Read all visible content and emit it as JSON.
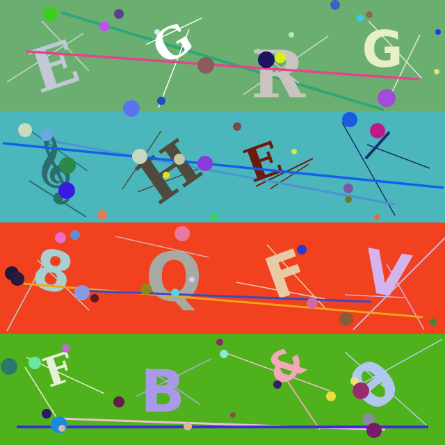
{
  "bands": [
    {
      "name": "band-1",
      "color": "#6aaf6f",
      "letters": [
        {
          "char": "E",
          "color": "#c3c8d6"
        },
        {
          "char": "G",
          "color": "#ffffff"
        },
        {
          "char": "R",
          "color": "#c9c4c0"
        },
        {
          "char": "G",
          "color": "#e6f0c8"
        }
      ]
    },
    {
      "name": "band-2",
      "color": "#4bb7bd",
      "letters": [
        {
          "char": "𝄞",
          "color": "#2a6e6c"
        },
        {
          "char": "H",
          "color": "#4e4a3e"
        },
        {
          "char": "E",
          "color": "#6b1a0c"
        }
      ]
    },
    {
      "name": "band-3",
      "color": "#f1411e",
      "letters": [
        {
          "char": "8",
          "color": "#a9cfd1"
        },
        {
          "char": "Q",
          "color": "#a6aaa3"
        },
        {
          "char": "F",
          "color": "#e8cba4"
        },
        {
          "char": "V",
          "color": "#d4b4ec"
        }
      ]
    },
    {
      "name": "band-4",
      "color": "#4fb11b",
      "letters": [
        {
          "char": "F",
          "color": "#e6f0da"
        },
        {
          "char": "B",
          "color": "#a89ae8"
        },
        {
          "char": "&",
          "color": "#f2a8b8"
        },
        {
          "char": "θ",
          "color": "#b0c8ee"
        }
      ]
    }
  ]
}
